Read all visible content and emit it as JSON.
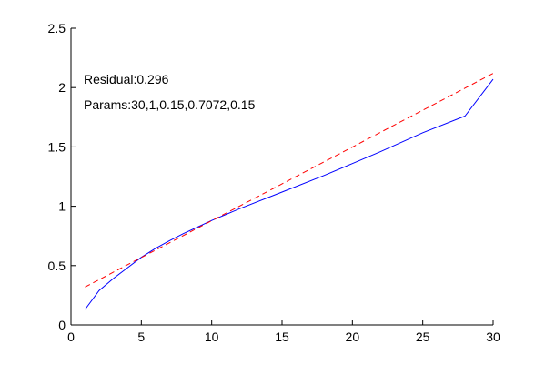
{
  "chart_data": {
    "type": "line",
    "xlim": [
      0,
      30
    ],
    "ylim": [
      0,
      2.5
    ],
    "x_ticks": [
      "0",
      "5",
      "10",
      "15",
      "20",
      "25",
      "30"
    ],
    "y_ticks": [
      "0",
      "0.5",
      "1",
      "1.5",
      "2",
      "2.5"
    ],
    "grid": false,
    "annotations": [
      "Residual:0.296",
      "Params:30,1,0.15,0.7072,0.15"
    ],
    "series": [
      {
        "color": "#0000ff",
        "dash": "solid",
        "x": [
          1,
          2,
          3,
          4,
          5,
          6,
          7,
          8,
          10,
          12,
          15,
          18,
          20,
          22,
          25,
          28,
          30
        ],
        "y": [
          0.13,
          0.29,
          0.39,
          0.48,
          0.57,
          0.645,
          0.71,
          0.77,
          0.88,
          0.98,
          1.12,
          1.26,
          1.36,
          1.46,
          1.62,
          1.76,
          2.07
        ]
      },
      {
        "color": "#ff0000",
        "dash": "dashed",
        "x": [
          1,
          30
        ],
        "y": [
          0.32,
          2.12
        ]
      }
    ]
  }
}
